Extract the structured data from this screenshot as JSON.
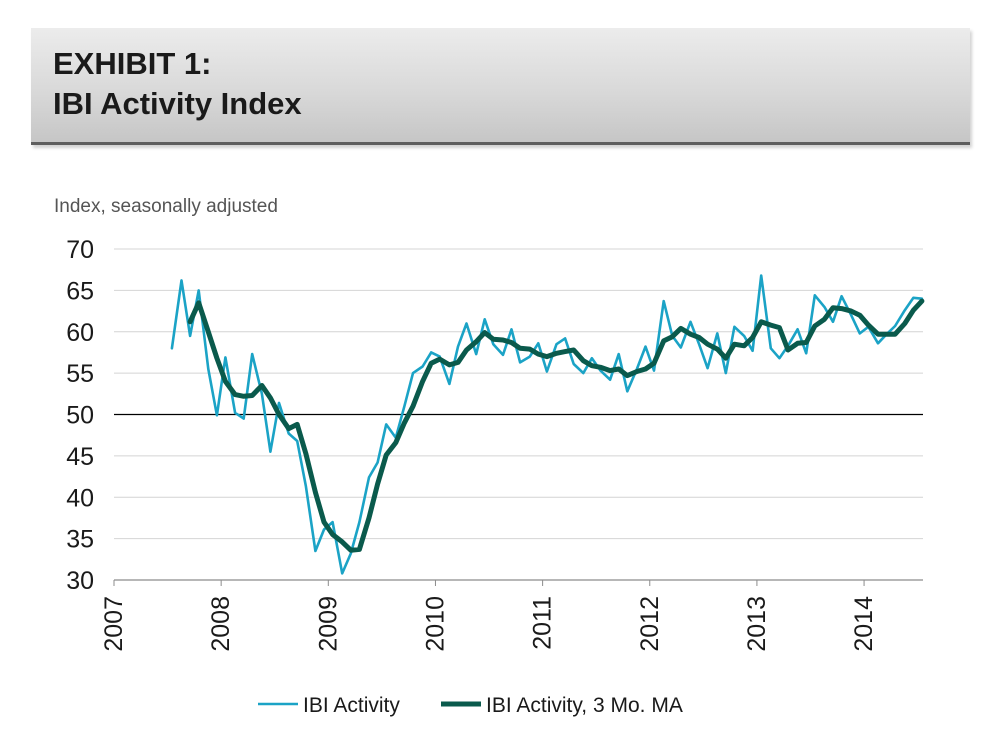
{
  "header": {
    "exhibit_label": "EXHIBIT 1:",
    "title": "IBI Activity Index"
  },
  "chart_data": {
    "type": "line",
    "title": "IBI Activity Index",
    "ylabel": "Index, seasonally adjusted",
    "xlabel": "",
    "ylim": [
      30,
      70
    ],
    "yticks": [
      30,
      35,
      40,
      45,
      50,
      55,
      60,
      65,
      70
    ],
    "xlim": [
      2007,
      2014.55
    ],
    "xticks": [
      2007,
      2008,
      2009,
      2010,
      2011,
      2012,
      2013,
      2014
    ],
    "xtick_labels": [
      "2007",
      "2008",
      "2009",
      "2010",
      "2011",
      "2012",
      "2013",
      "2014"
    ],
    "reference_line": 50,
    "grid": "horizontal",
    "legend_position": "bottom",
    "series": [
      {
        "name": "IBI Activity",
        "color": "#1ba3c6",
        "points": [
          [
            2007.54,
            58.0
          ],
          [
            2007.63,
            66.2
          ],
          [
            2007.71,
            59.5
          ],
          [
            2007.79,
            65.0
          ],
          [
            2007.88,
            55.5
          ],
          [
            2007.96,
            49.9
          ],
          [
            2008.04,
            56.9
          ],
          [
            2008.13,
            50.2
          ],
          [
            2008.21,
            49.5
          ],
          [
            2008.29,
            57.3
          ],
          [
            2008.38,
            52.5
          ],
          [
            2008.46,
            45.5
          ],
          [
            2008.54,
            51.4
          ],
          [
            2008.63,
            47.7
          ],
          [
            2008.71,
            46.8
          ],
          [
            2008.79,
            41.4
          ],
          [
            2008.88,
            33.5
          ],
          [
            2008.96,
            36.1
          ],
          [
            2009.04,
            37.0
          ],
          [
            2009.13,
            30.8
          ],
          [
            2009.21,
            33.2
          ],
          [
            2009.29,
            37.0
          ],
          [
            2009.38,
            42.4
          ],
          [
            2009.46,
            44.2
          ],
          [
            2009.54,
            48.8
          ],
          [
            2009.63,
            47.2
          ],
          [
            2009.71,
            51.0
          ],
          [
            2009.79,
            55.0
          ],
          [
            2009.88,
            55.8
          ],
          [
            2009.96,
            57.5
          ],
          [
            2010.04,
            57.0
          ],
          [
            2010.13,
            53.7
          ],
          [
            2010.21,
            58.2
          ],
          [
            2010.29,
            61.0
          ],
          [
            2010.38,
            57.3
          ],
          [
            2010.46,
            61.5
          ],
          [
            2010.54,
            58.5
          ],
          [
            2010.63,
            57.2
          ],
          [
            2010.71,
            60.3
          ],
          [
            2010.79,
            56.3
          ],
          [
            2010.88,
            57.0
          ],
          [
            2010.96,
            58.6
          ],
          [
            2011.04,
            55.2
          ],
          [
            2011.13,
            58.5
          ],
          [
            2011.21,
            59.2
          ],
          [
            2011.29,
            56.1
          ],
          [
            2011.38,
            55.0
          ],
          [
            2011.46,
            56.8
          ],
          [
            2011.54,
            55.3
          ],
          [
            2011.63,
            54.2
          ],
          [
            2011.71,
            57.3
          ],
          [
            2011.79,
            52.8
          ],
          [
            2011.88,
            55.5
          ],
          [
            2011.96,
            58.2
          ],
          [
            2012.04,
            55.3
          ],
          [
            2012.13,
            63.7
          ],
          [
            2012.21,
            59.5
          ],
          [
            2012.29,
            58.1
          ],
          [
            2012.38,
            61.2
          ],
          [
            2012.46,
            58.5
          ],
          [
            2012.54,
            55.6
          ],
          [
            2012.63,
            59.8
          ],
          [
            2012.71,
            55.0
          ],
          [
            2012.79,
            60.6
          ],
          [
            2012.88,
            59.5
          ],
          [
            2012.96,
            57.7
          ],
          [
            2013.04,
            66.8
          ],
          [
            2013.13,
            58.0
          ],
          [
            2013.21,
            56.8
          ],
          [
            2013.29,
            58.3
          ],
          [
            2013.38,
            60.3
          ],
          [
            2013.46,
            57.4
          ],
          [
            2013.54,
            64.4
          ],
          [
            2013.63,
            63.0
          ],
          [
            2013.71,
            61.2
          ],
          [
            2013.79,
            64.3
          ],
          [
            2013.88,
            62.0
          ],
          [
            2013.96,
            59.8
          ],
          [
            2014.04,
            60.6
          ],
          [
            2014.13,
            58.6
          ],
          [
            2014.21,
            59.7
          ],
          [
            2014.29,
            60.7
          ],
          [
            2014.38,
            62.6
          ],
          [
            2014.46,
            64.1
          ],
          [
            2014.54,
            64.0
          ]
        ]
      },
      {
        "name": "IBI Activity, 3 Mo. MA",
        "color": "#0a5a4c",
        "points": [
          [
            2007.71,
            61.2
          ],
          [
            2007.79,
            63.5
          ],
          [
            2007.88,
            60.0
          ],
          [
            2007.96,
            56.8
          ],
          [
            2008.04,
            54.0
          ],
          [
            2008.13,
            52.4
          ],
          [
            2008.21,
            52.2
          ],
          [
            2008.29,
            52.3
          ],
          [
            2008.38,
            53.5
          ],
          [
            2008.46,
            52.0
          ],
          [
            2008.54,
            50.0
          ],
          [
            2008.63,
            48.3
          ],
          [
            2008.71,
            48.8
          ],
          [
            2008.79,
            45.3
          ],
          [
            2008.88,
            40.6
          ],
          [
            2008.96,
            37.0
          ],
          [
            2009.04,
            35.5
          ],
          [
            2009.13,
            34.6
          ],
          [
            2009.21,
            33.6
          ],
          [
            2009.29,
            33.7
          ],
          [
            2009.38,
            37.5
          ],
          [
            2009.46,
            41.6
          ],
          [
            2009.54,
            45.1
          ],
          [
            2009.63,
            46.6
          ],
          [
            2009.71,
            49.0
          ],
          [
            2009.79,
            51.0
          ],
          [
            2009.88,
            54.0
          ],
          [
            2009.96,
            56.2
          ],
          [
            2010.04,
            56.7
          ],
          [
            2010.13,
            56.0
          ],
          [
            2010.21,
            56.3
          ],
          [
            2010.29,
            57.8
          ],
          [
            2010.38,
            58.8
          ],
          [
            2010.46,
            59.9
          ],
          [
            2010.54,
            59.1
          ],
          [
            2010.63,
            59.0
          ],
          [
            2010.71,
            58.7
          ],
          [
            2010.79,
            58.0
          ],
          [
            2010.88,
            57.9
          ],
          [
            2010.96,
            57.3
          ],
          [
            2011.04,
            57.0
          ],
          [
            2011.13,
            57.4
          ],
          [
            2011.21,
            57.6
          ],
          [
            2011.29,
            57.8
          ],
          [
            2011.38,
            56.5
          ],
          [
            2011.46,
            55.9
          ],
          [
            2011.54,
            55.7
          ],
          [
            2011.63,
            55.3
          ],
          [
            2011.71,
            55.5
          ],
          [
            2011.79,
            54.7
          ],
          [
            2011.88,
            55.2
          ],
          [
            2011.96,
            55.5
          ],
          [
            2012.04,
            56.2
          ],
          [
            2012.13,
            58.9
          ],
          [
            2012.21,
            59.4
          ],
          [
            2012.29,
            60.4
          ],
          [
            2012.38,
            59.7
          ],
          [
            2012.46,
            59.3
          ],
          [
            2012.54,
            58.5
          ],
          [
            2012.63,
            57.9
          ],
          [
            2012.71,
            56.8
          ],
          [
            2012.79,
            58.5
          ],
          [
            2012.88,
            58.3
          ],
          [
            2012.96,
            59.3
          ],
          [
            2013.04,
            61.2
          ],
          [
            2013.13,
            60.8
          ],
          [
            2013.21,
            60.5
          ],
          [
            2013.29,
            57.8
          ],
          [
            2013.38,
            58.6
          ],
          [
            2013.46,
            58.7
          ],
          [
            2013.54,
            60.7
          ],
          [
            2013.63,
            61.5
          ],
          [
            2013.71,
            62.9
          ],
          [
            2013.79,
            62.8
          ],
          [
            2013.88,
            62.5
          ],
          [
            2013.96,
            62.0
          ],
          [
            2014.04,
            60.8
          ],
          [
            2014.13,
            59.7
          ],
          [
            2014.21,
            59.7
          ],
          [
            2014.29,
            59.7
          ],
          [
            2014.38,
            61.0
          ],
          [
            2014.46,
            62.6
          ],
          [
            2014.54,
            63.7
          ]
        ]
      }
    ]
  }
}
